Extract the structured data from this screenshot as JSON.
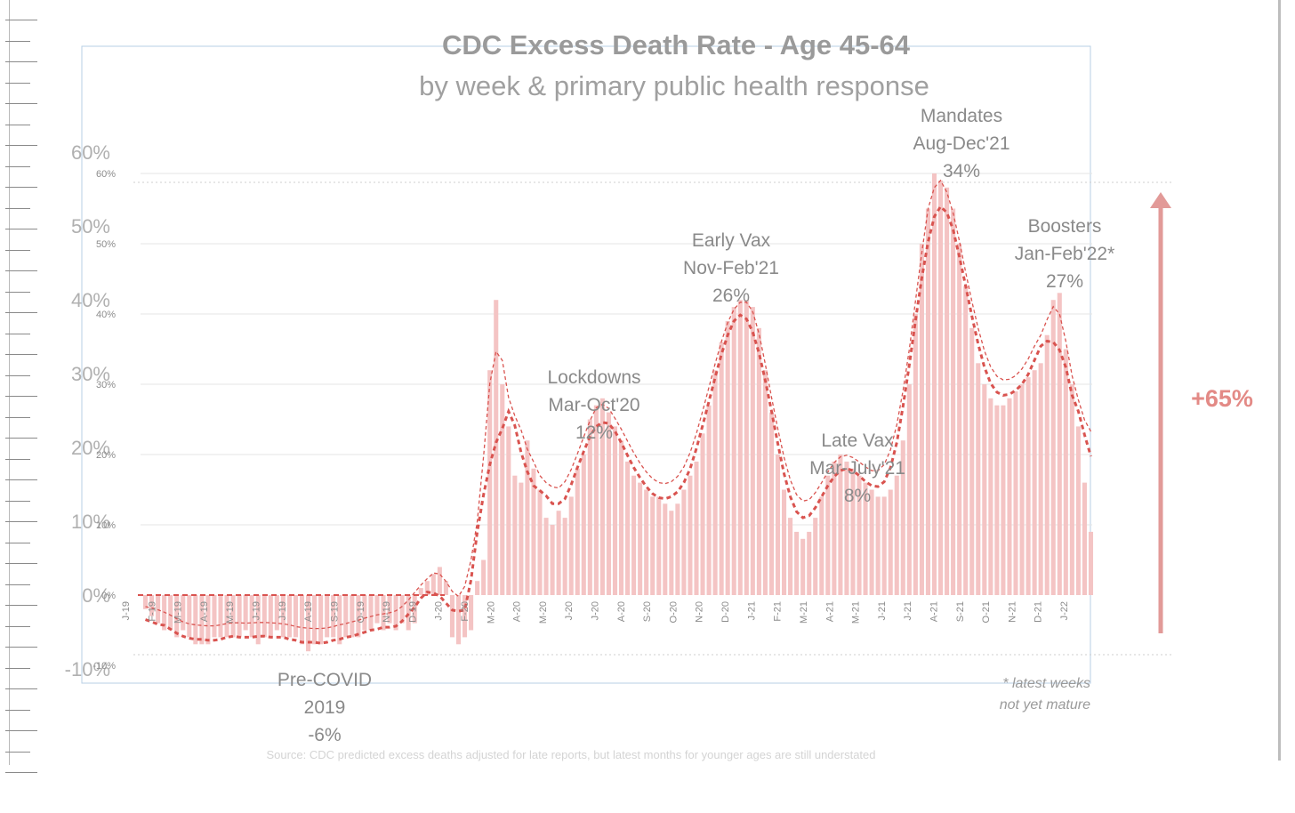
{
  "chart_data": {
    "type": "bar",
    "title": "CDC Excess Death Rate - Age 45-64",
    "subtitle": "by week & primary public health response",
    "y_ticks_outer": [
      "60%",
      "50%",
      "40%",
      "30%",
      "20%",
      "10%",
      "0%",
      "-10%"
    ],
    "y_ticks_inner": [
      "60%",
      "50%",
      "40%",
      "30%",
      "20%",
      "10%",
      "0%",
      "-10%"
    ],
    "ylim": [
      -10,
      60
    ],
    "x_tick_labels": [
      "J-19",
      "F-19",
      "M-19",
      "A-19",
      "M-19",
      "J-19",
      "J-19",
      "A-19",
      "S-19",
      "O-19",
      "N-19",
      "D-19",
      "J-20",
      "F-20",
      "M-20",
      "A-20",
      "M-20",
      "J-20",
      "J-20",
      "A-20",
      "S-20",
      "O-20",
      "N-20",
      "D-20",
      "J-21",
      "F-21",
      "M-21",
      "A-21",
      "M-21",
      "J-21",
      "J-21",
      "A-21",
      "S-21",
      "O-21",
      "N-21",
      "D-21",
      "J-22"
    ],
    "grid": true,
    "series": [
      {
        "values": [
          -2,
          -3,
          -4,
          -5,
          -5,
          -6,
          -5,
          -6,
          -7,
          -7,
          -7,
          -6,
          -6,
          -6,
          -6,
          -6,
          -5,
          -6,
          -7,
          -6,
          -6,
          -5,
          -6,
          -6,
          -6,
          -7,
          -8,
          -7,
          -7,
          -6,
          -6,
          -7,
          -6,
          -6,
          -6,
          -5,
          -5,
          -4,
          -5,
          -4,
          -5,
          -4,
          -5,
          -4,
          1,
          2,
          3,
          4,
          2,
          -6,
          -7,
          -6,
          -5,
          2,
          5,
          32,
          42,
          30,
          24,
          17,
          16,
          22,
          18,
          15,
          11,
          10,
          12,
          11,
          14,
          18,
          20,
          25,
          27,
          28,
          26,
          24,
          22,
          19,
          17,
          16,
          15,
          14,
          14,
          13,
          12,
          13,
          15,
          17,
          19,
          23,
          27,
          32,
          36,
          39,
          41,
          42,
          42,
          41,
          38,
          32,
          26,
          20,
          15,
          11,
          9,
          8,
          9,
          11,
          14,
          17,
          19,
          20,
          19,
          18,
          17,
          16,
          15,
          14,
          14,
          15,
          17,
          22,
          30,
          40,
          50,
          55,
          60,
          59,
          58,
          55,
          50,
          44,
          38,
          33,
          30,
          28,
          27,
          27,
          28,
          29,
          30,
          31,
          32,
          33,
          37,
          42,
          43,
          35,
          30,
          24,
          16,
          9
        ]
      }
    ],
    "annotations": [
      {
        "lines": [
          "Pre-COVID",
          "2019",
          "-6%"
        ]
      },
      {
        "lines": [
          "Lockdowns",
          "Mar-Oct'20",
          "12%"
        ]
      },
      {
        "lines": [
          "Early Vax",
          "Nov-Feb'21",
          "26%"
        ]
      },
      {
        "lines": [
          "Late Vax",
          "Mar-July'21",
          "8%"
        ]
      },
      {
        "lines": [
          "Mandates",
          "Aug-Dec'21",
          "34%"
        ]
      },
      {
        "lines": [
          "Boosters",
          "Jan-Feb'22*",
          "27%"
        ]
      }
    ],
    "change_label": "+65%",
    "footnote": [
      "* latest weeks",
      "not yet mature"
    ],
    "source": "Source: CDC predicted excess deaths adjusted for late reports, but latest months for younger ages are still understated",
    "colors": {
      "bars": "#f4c4c4",
      "trend": "#d9534f",
      "arrow": "#e29a98",
      "title": "#9a9a9a"
    }
  }
}
